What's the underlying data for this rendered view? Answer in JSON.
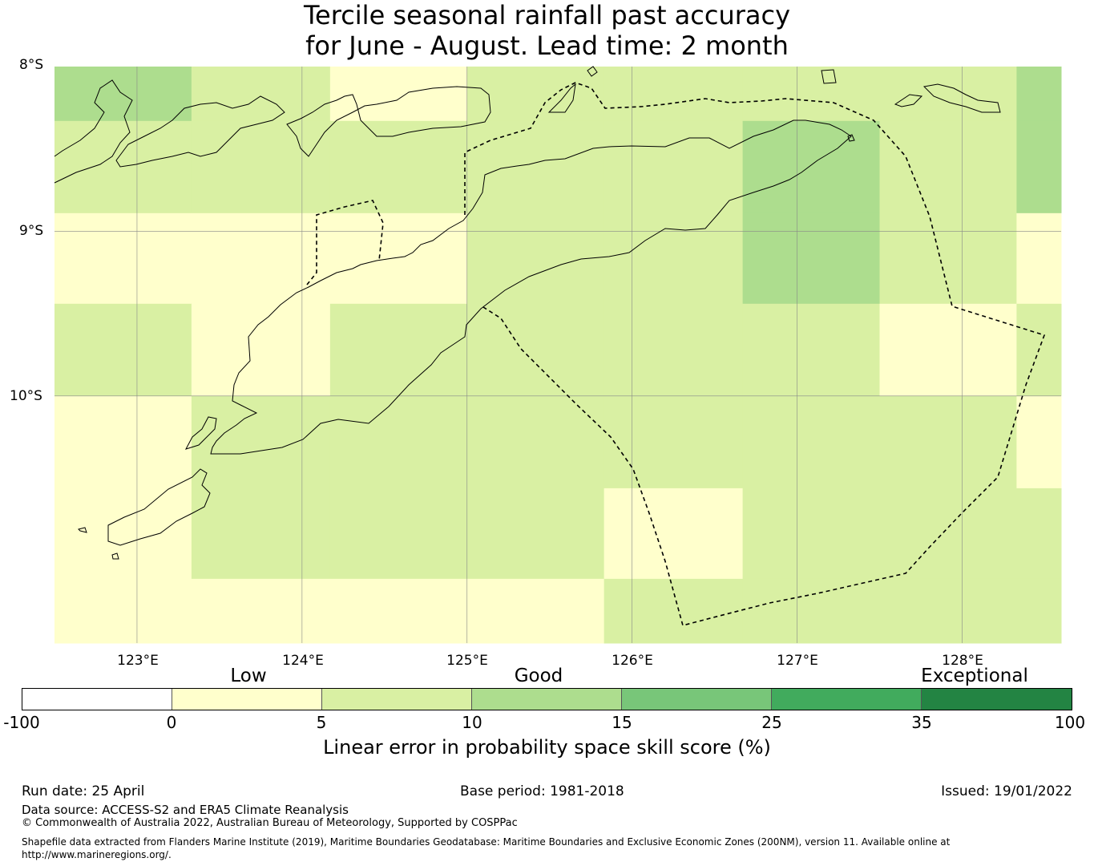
{
  "title": {
    "line1": "Tercile seasonal rainfall past accuracy",
    "line2": "for June - August. Lead time: 2 month"
  },
  "map": {
    "lat_labels": [
      "8°S",
      "9°S",
      "10°S"
    ],
    "lon_labels": [
      "123°E",
      "124°E",
      "125°E",
      "126°E",
      "127°E",
      "128°E"
    ],
    "extent": {
      "lon": [
        122.5,
        128.6
      ],
      "lat": [
        -8.0,
        -11.5
      ]
    },
    "grid_lines": true,
    "cell_colors": {
      "low": "#ffffcc",
      "good": "#d9f0a3",
      "good_plus": "#addd8e"
    },
    "grid_cells": {
      "lon_edges": [
        122.5,
        123.33,
        124.17,
        125.0,
        125.83,
        126.67,
        127.5,
        128.33,
        128.6
      ],
      "lat_edges": [
        -8.0,
        -8.33,
        -8.89,
        -9.44,
        -10.0,
        -10.56,
        -11.11,
        -11.5
      ],
      "category_rows": [
        [
          "good_plus",
          "good",
          "low",
          "good",
          "good",
          "good",
          "good",
          "good_plus"
        ],
        [
          "good",
          "good",
          "good",
          "good",
          "good",
          "good_plus",
          "good",
          "good_plus"
        ],
        [
          "low",
          "low",
          "low",
          "good",
          "good",
          "good_plus",
          "good",
          "low"
        ],
        [
          "good",
          "low",
          "good",
          "good",
          "good",
          "good",
          "low",
          "good"
        ],
        [
          "low",
          "good",
          "good",
          "good",
          "good",
          "good",
          "good",
          "low"
        ],
        [
          "low",
          "good",
          "good",
          "good",
          "low",
          "good",
          "good",
          "good"
        ],
        [
          "low",
          "low",
          "low",
          "low",
          "good",
          "good",
          "good",
          "good"
        ]
      ]
    }
  },
  "legend": {
    "categories": [
      "Low",
      "Good",
      "Exceptional"
    ],
    "ticks": [
      "-100",
      "0",
      "5",
      "10",
      "15",
      "25",
      "35",
      "100"
    ],
    "colors": [
      "#ffffff",
      "#ffffcc",
      "#d9f0a3",
      "#addd8e",
      "#78c679",
      "#41ab5d",
      "#238443"
    ],
    "label": "Linear error in probability space skill score (%)"
  },
  "footer": {
    "run_date": "Run date: 25 April",
    "base_period": "Base period: 1981-2018",
    "issued": "Issued: 19/01/2022",
    "data_source": "Data source: ACCESS-S2 and ERA5 Climate Reanalysis",
    "copyright": "© Commonwealth of Australia 2022, Australian Bureau of Meteorology, Supported by COSPPac",
    "shapefile_line1": "Shapefile data extracted from Flanders Marine Institute (2019), Maritime Boundaries Geodatabase: Maritime Boundaries and Exclusive Economic Zones (200NM), version 11. Available online at",
    "shapefile_line2": "http://www.marineregions.org/."
  }
}
